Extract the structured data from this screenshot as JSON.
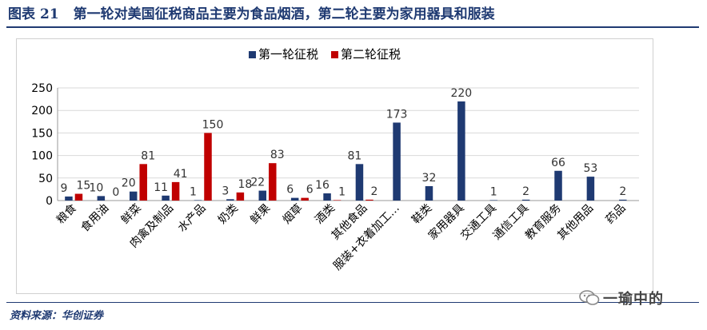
{
  "header": {
    "label": "图表",
    "number": "21",
    "title": "第一轮对美国征税商品主要为食品烟酒，第二轮主要为家用器具和服装"
  },
  "footer": {
    "source": "资料来源：华创证券"
  },
  "watermark": {
    "text": "一瑜中的",
    "icon": "wechat-icon"
  },
  "chart_data": {
    "type": "bar",
    "categories": [
      "粮食",
      "食用油",
      "鲜菜",
      "肉禽及制品",
      "水产品",
      "奶类",
      "鲜果",
      "烟草",
      "酒类",
      "其他食品",
      "服装+衣着加工…",
      "鞋类",
      "家用器具",
      "交通工具",
      "通信工具",
      "教育服务",
      "其他用品",
      "药品"
    ],
    "series": [
      {
        "name": "第一轮征税",
        "color": "#1f3a72",
        "values": [
          9,
          10,
          20,
          11,
          1,
          3,
          22,
          6,
          16,
          81,
          173,
          32,
          220,
          1,
          2,
          66,
          53,
          2
        ]
      },
      {
        "name": "第二轮征税",
        "color": "#c00000",
        "values": [
          15,
          0,
          81,
          41,
          150,
          18,
          83,
          6,
          1,
          2,
          null,
          null,
          null,
          null,
          null,
          null,
          null,
          null
        ]
      }
    ],
    "ylim": [
      0,
      250
    ],
    "yticks": [
      0,
      50,
      100,
      150,
      200,
      250
    ],
    "grid": true,
    "legend": "top-center"
  }
}
